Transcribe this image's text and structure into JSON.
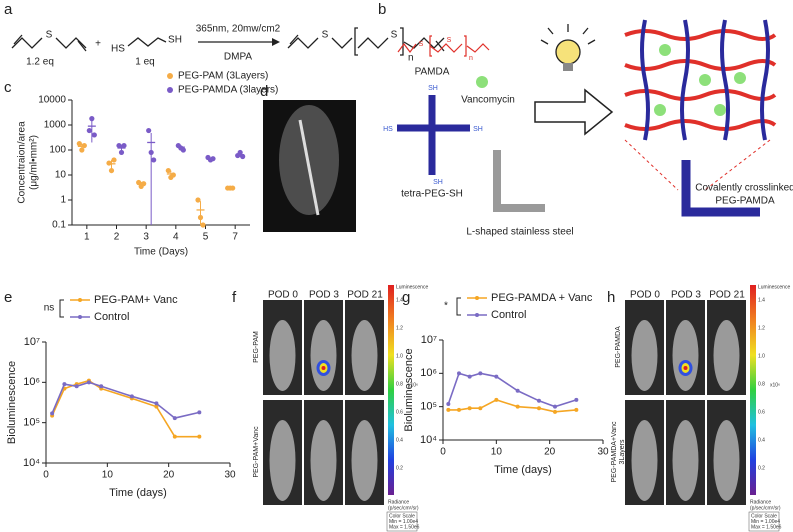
{
  "panel_labels": [
    "a",
    "b",
    "c",
    "d",
    "e",
    "f",
    "g",
    "h"
  ],
  "reaction": {
    "reagent1_eq": "1.2 eq",
    "reagent2_eq": "1 eq",
    "plus": "+",
    "conditions": "365nm, 20mw/cm2",
    "catalyst": "DMPA",
    "sulfur": "S",
    "thiol": "SH",
    "thiol_left": "HS",
    "repeat": "n"
  },
  "scheme": {
    "polymer": "PAMDA",
    "drug": "Vancomycin",
    "crosslinker": "tetra-PEG-SH",
    "implant": "L-shaped stainless steel",
    "product_lines": [
      "Covalently crosslinked",
      "PEG-PAMDA"
    ],
    "thiol": "SH",
    "thiol_left": "HS",
    "sulfur": "S",
    "repeat": "n"
  },
  "imaging": {
    "timepoints": [
      "POD 0",
      "POD 3",
      "POD 21"
    ],
    "f_rows": [
      "PEG-PAM",
      "PEG-PAM+Vanc"
    ],
    "h_rows": [
      "PEG-PAMDA",
      "PEG-PAMDA+Vanc",
      "3Layers"
    ],
    "colorbar": {
      "title": "Luminescence",
      "ticks": [
        "1.4",
        "1.2",
        "1.0",
        "0.8",
        "0.6",
        "0.4",
        "0.2"
      ],
      "exponent": "x10⁶",
      "unit_lines": [
        "Radiance",
        "(p/sec/cm²/sr)"
      ],
      "scale_lines": [
        "Color Scale",
        "Min = 1.00e4",
        "Max = 1.50e6"
      ]
    }
  },
  "chart_data": [
    {
      "type": "dot",
      "y_label_lines": [
        "Concentraion/area",
        "(μg/ml•mm²)"
      ],
      "x_label": "Time (Days)",
      "categories": [
        "1",
        "2",
        "3",
        "4",
        "5",
        "7"
      ],
      "log_y": true,
      "ylim": [
        0.1,
        10000
      ],
      "yticks": [
        0.1,
        1,
        10,
        100,
        1000,
        10000
      ],
      "legend": "top-right",
      "series": [
        {
          "name": "PEG-PAM (3Layers)",
          "color": "#f5ac47",
          "values": [
            140,
            28,
            4.3,
            11,
            0.4,
            3
          ],
          "errors": [
            40,
            12,
            1,
            4,
            0.5,
            0.2
          ],
          "points": [
            [
              180,
              100,
              150
            ],
            [
              30,
              15,
              40
            ],
            [
              5,
              3.5,
              4.5
            ],
            [
              15,
              8,
              10
            ],
            [
              1,
              0.2,
              0.1
            ],
            [
              3,
              3,
              3
            ]
          ]
        },
        {
          "name": "PEG-PAMDA (3layers)",
          "color": "#7a5bc7",
          "values": [
            900,
            120,
            200,
            130,
            45,
            65
          ],
          "errors": [
            700,
            40,
            280,
            25,
            5,
            12
          ],
          "points": [
            [
              600,
              1800,
              400
            ],
            [
              150,
              80,
              150
            ],
            [
              600,
              80,
              40
            ],
            [
              150,
              120,
              100
            ],
            [
              50,
              40,
              45
            ],
            [
              60,
              80,
              55
            ]
          ]
        }
      ]
    },
    {
      "type": "line",
      "annotation": "ns",
      "x_label": "Time (days)",
      "y_label": "Bioluminescence",
      "x": [
        1,
        3,
        5,
        7,
        9,
        14,
        18,
        21,
        25
      ],
      "xlim": [
        0,
        30
      ],
      "xticks": [
        0,
        10,
        20,
        30
      ],
      "log_y": true,
      "ylim": [
        10000,
        10000000
      ],
      "yticks": [
        {
          "value": 10000,
          "label": "10⁴"
        },
        {
          "value": 100000,
          "label": "10⁵"
        },
        {
          "value": 1000000,
          "label": "10⁶"
        },
        {
          "value": 10000000,
          "label": "10⁷"
        }
      ],
      "series": [
        {
          "name": "PEG-PAM+ Vanc",
          "color": "#f5a623",
          "values": [
            150000,
            700000,
            900000,
            1100000,
            700000,
            400000,
            250000,
            45000,
            45000
          ]
        },
        {
          "name": "Control",
          "color": "#7a6bc4",
          "values": [
            170000,
            900000,
            800000,
            1000000,
            800000,
            450000,
            300000,
            130000,
            180000
          ]
        }
      ]
    },
    {
      "type": "line",
      "annotation": "*",
      "x_label": "Time (days)",
      "y_label": "Bioluminescence",
      "x": [
        1,
        3,
        5,
        7,
        10,
        14,
        18,
        21,
        25
      ],
      "xlim": [
        0,
        30
      ],
      "xticks": [
        0,
        10,
        20,
        30
      ],
      "log_y": true,
      "ylim": [
        10000,
        10000000
      ],
      "yticks": [
        {
          "value": 10000,
          "label": "10⁴"
        },
        {
          "value": 100000,
          "label": "10⁵"
        },
        {
          "value": 1000000,
          "label": "10⁶"
        },
        {
          "value": 10000000,
          "label": "10⁷"
        }
      ],
      "series": [
        {
          "name": "PEG-PAMDA + Vanc",
          "color": "#f5a623",
          "values": [
            80000,
            80000,
            90000,
            90000,
            160000,
            100000,
            90000,
            70000,
            80000
          ]
        },
        {
          "name": "Control",
          "color": "#7a6bc4",
          "values": [
            120000,
            1000000,
            800000,
            1000000,
            800000,
            300000,
            150000,
            100000,
            160000
          ]
        }
      ]
    }
  ]
}
